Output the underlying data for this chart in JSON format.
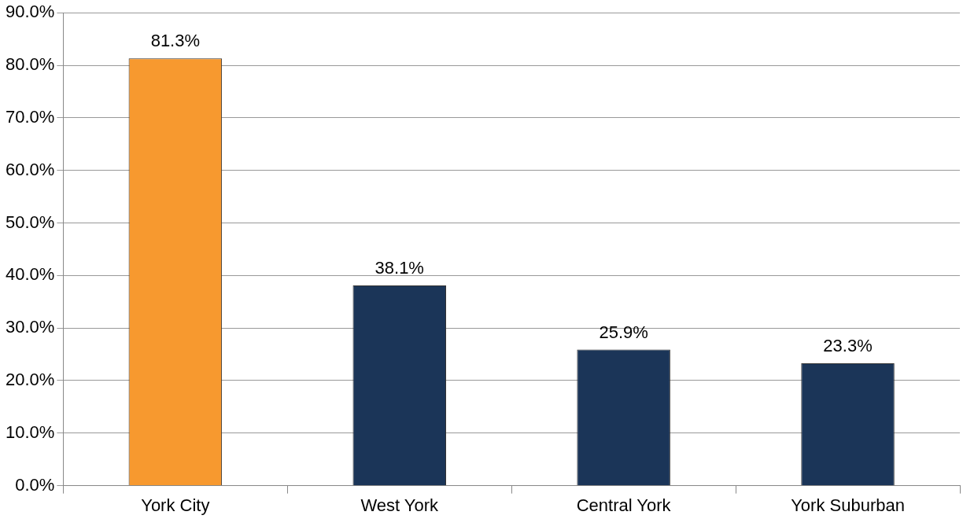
{
  "chart_data": {
    "type": "bar",
    "categories": [
      "York City",
      "West York",
      "Central York",
      "York Suburban"
    ],
    "values": [
      81.3,
      38.1,
      25.9,
      23.3
    ],
    "colors": [
      "#f7992f",
      "#1b3558",
      "#1b3558",
      "#1b3558"
    ],
    "value_labels": [
      "81.3%",
      "38.1%",
      "25.9%",
      "23.3%"
    ],
    "ylim": [
      0,
      90
    ],
    "yticks": [
      {
        "value": 0,
        "label": "0.0%"
      },
      {
        "value": 10,
        "label": "10.0%"
      },
      {
        "value": 20,
        "label": "20.0%"
      },
      {
        "value": 30,
        "label": "30.0%"
      },
      {
        "value": 40,
        "label": "40.0%"
      },
      {
        "value": 50,
        "label": "50.0%"
      },
      {
        "value": 60,
        "label": "60.0%"
      },
      {
        "value": 70,
        "label": "70.0%"
      },
      {
        "value": 80,
        "label": "80.0%"
      },
      {
        "value": 90,
        "label": "90.0%"
      }
    ],
    "grid": "y",
    "legend": false
  }
}
